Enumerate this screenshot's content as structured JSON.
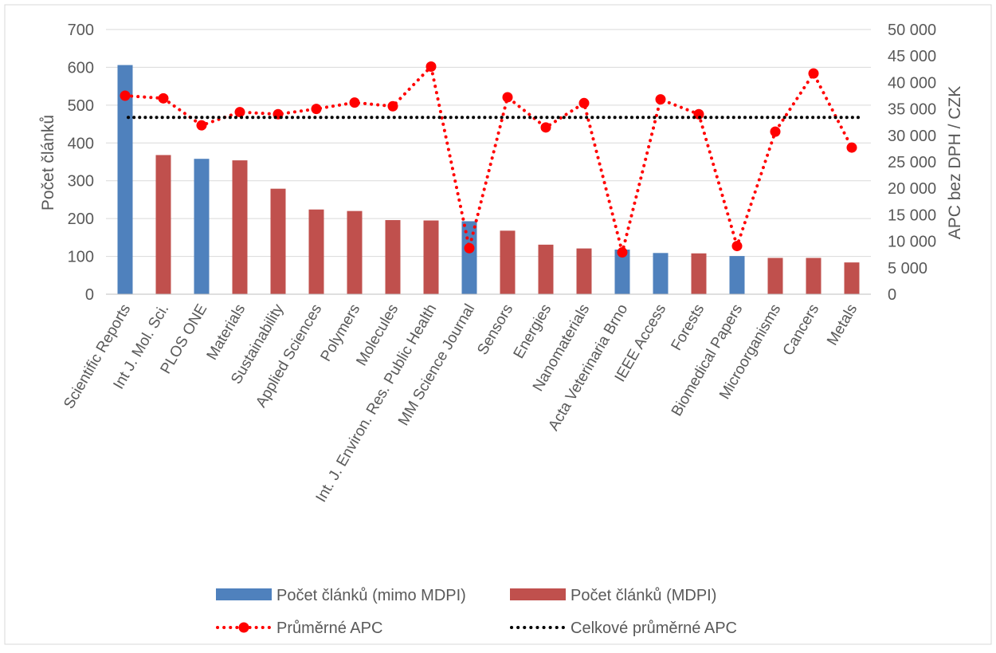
{
  "chart_data": {
    "type": "bar",
    "categories": [
      "Scientific Reports",
      "Int J. Mol. Sci.",
      "PLOS ONE",
      "Materials",
      "Sustainability",
      "Applied Sciences",
      "Polymers",
      "Molecules",
      "Int. J. Environ. Res. Public Health",
      "MM Science Journal",
      "Sensors",
      "Energies",
      "Nanomaterials",
      "Acta Veterinaria Brno",
      "IEEE Access",
      "Forests",
      "Biomedical Papers",
      "Microorganisms",
      "Cancers",
      "Metals"
    ],
    "series": [
      {
        "name": "Počet článků (mimo MDPI)",
        "axis": "left",
        "kind": "bar",
        "color": "#4f81bd",
        "values": [
          606,
          null,
          358,
          null,
          null,
          null,
          null,
          null,
          null,
          193,
          null,
          null,
          null,
          118,
          109,
          null,
          101,
          null,
          null,
          null
        ]
      },
      {
        "name": "Počet článků (MDPI)",
        "axis": "left",
        "kind": "bar",
        "color": "#c0504d",
        "values": [
          null,
          368,
          null,
          354,
          279,
          224,
          220,
          196,
          195,
          null,
          168,
          131,
          121,
          null,
          null,
          108,
          null,
          96,
          96,
          84
        ]
      },
      {
        "name": "Průměrné APC",
        "axis": "right",
        "kind": "line",
        "style": "dotted",
        "marker": "circle",
        "color": "#ff0000",
        "values": [
          37500,
          37000,
          31900,
          34400,
          34000,
          35000,
          36200,
          35500,
          43000,
          8700,
          37200,
          31500,
          36100,
          7900,
          36800,
          34000,
          9100,
          30700,
          41700,
          27700
        ]
      },
      {
        "name": "Celkové průměrné APC",
        "axis": "right",
        "kind": "line",
        "style": "dotted",
        "color": "#000000",
        "values": [
          33400,
          33400,
          33400,
          33400,
          33400,
          33400,
          33400,
          33400,
          33400,
          33400,
          33400,
          33400,
          33400,
          33400,
          33400,
          33400,
          33400,
          33400,
          33400,
          33400
        ]
      }
    ],
    "ylabel": "Počet článků",
    "y2label": "APC bez DPH / CZK",
    "ylim": [
      0,
      700
    ],
    "yticks": [
      "0",
      "100",
      "200",
      "300",
      "400",
      "500",
      "600",
      "700"
    ],
    "y2lim": [
      0,
      50000
    ],
    "y2ticks": [
      "0",
      "5 000",
      "10 000",
      "15 000",
      "20 000",
      "25 000",
      "30 000",
      "35 000",
      "40 000",
      "45 000",
      "50 000"
    ],
    "grid": true,
    "legend_position": "bottom"
  }
}
